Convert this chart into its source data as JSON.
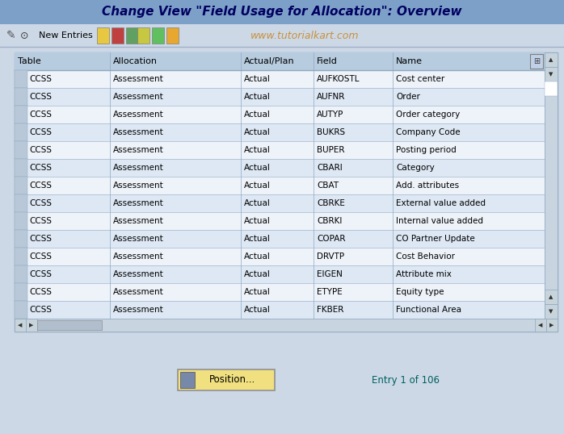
{
  "title": "Change View \"Field Usage for Allocation\": Overview",
  "watermark": "www.tutorialkart.com",
  "toolbar_text": "New Entries",
  "headers": [
    "Table",
    "Allocation",
    "Actual/Plan",
    "Field",
    "Name"
  ],
  "rows": [
    [
      "CCSS",
      "Assessment",
      "Actual",
      "AUFKOSTL",
      "Cost center"
    ],
    [
      "CCSS",
      "Assessment",
      "Actual",
      "AUFNR",
      "Order"
    ],
    [
      "CCSS",
      "Assessment",
      "Actual",
      "AUTYP",
      "Order category"
    ],
    [
      "CCSS",
      "Assessment",
      "Actual",
      "BUKRS",
      "Company Code"
    ],
    [
      "CCSS",
      "Assessment",
      "Actual",
      "BUPER",
      "Posting period"
    ],
    [
      "CCSS",
      "Assessment",
      "Actual",
      "CBARI",
      "Category"
    ],
    [
      "CCSS",
      "Assessment",
      "Actual",
      "CBAT",
      "Add. attributes"
    ],
    [
      "CCSS",
      "Assessment",
      "Actual",
      "CBRKE",
      "External value added"
    ],
    [
      "CCSS",
      "Assessment",
      "Actual",
      "CBRKI",
      "Internal value added"
    ],
    [
      "CCSS",
      "Assessment",
      "Actual",
      "COPAR",
      "CO Partner Update"
    ],
    [
      "CCSS",
      "Assessment",
      "Actual",
      "DRVTP",
      "Cost Behavior"
    ],
    [
      "CCSS",
      "Assessment",
      "Actual",
      "EIGEN",
      "Attribute mix"
    ],
    [
      "CCSS",
      "Assessment",
      "Actual",
      "ETYPE",
      "Equity type"
    ],
    [
      "CCSS",
      "Assessment",
      "Actual",
      "FKBER",
      "Functional Area"
    ]
  ],
  "bg_color": "#cdd8e6",
  "title_bg": "#7da0c8",
  "toolbar_bg": "#cdd8e6",
  "table_bg_white": "#ffffff",
  "table_bg_light": "#e8f0f8",
  "header_bg": "#b8cce0",
  "grid_color": "#90a8c0",
  "title_color": "#000060",
  "header_color": "#000000",
  "row_color": "#000000",
  "watermark_color": "#c8903c",
  "button_bg": "#f0e080",
  "button_border": "#909090",
  "entry_text": "Entry 1 of 106",
  "position_btn": "Position...",
  "scrollbar_bg": "#c8d4e0",
  "scrollbar_thumb": "#a0b0c4",
  "left_cell_bg": "#b8c8d8",
  "fig_width": 6.98,
  "fig_height": 5.38,
  "dpi": 100
}
